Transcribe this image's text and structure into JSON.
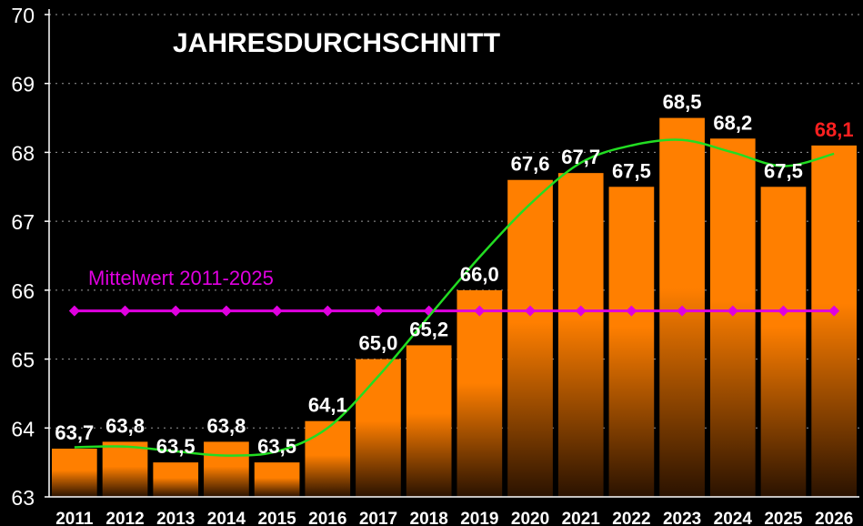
{
  "chart_data": {
    "type": "bar",
    "title": "JAHRESDURCHSCHNITT",
    "categories": [
      "2011",
      "2012",
      "2013",
      "2014",
      "2015",
      "2016",
      "2017",
      "2018",
      "2019",
      "2020",
      "2021",
      "2022",
      "2023",
      "2024",
      "2025",
      "2026"
    ],
    "values": [
      63.7,
      63.8,
      63.5,
      63.8,
      63.5,
      64.1,
      65.0,
      65.2,
      66.0,
      67.6,
      67.7,
      67.5,
      68.5,
      68.2,
      67.5,
      68.1
    ],
    "value_labels": [
      "63,7",
      "63,8",
      "63,5",
      "63,8",
      "63,5",
      "64,1",
      "65,0",
      "65,2",
      "66,0",
      "67,6",
      "67,7",
      "67,5",
      "68,5",
      "68,2",
      "67,5",
      "68,1"
    ],
    "highlight_index": 15,
    "ylim": [
      63,
      70
    ],
    "yticks": [
      "63",
      "64",
      "65",
      "66",
      "67",
      "68",
      "69",
      "70"
    ],
    "mean_line": {
      "label": "Mittelwert 2011-2025",
      "value": 65.7
    },
    "trend_line": {
      "name": "trend",
      "values": [
        63.72,
        63.73,
        63.66,
        63.6,
        63.66,
        64.0,
        64.75,
        65.62,
        66.48,
        67.25,
        67.85,
        68.1,
        68.18,
        68.0,
        67.8,
        67.98
      ]
    },
    "colors": {
      "bar_top": "#ff7f00",
      "bar_bottom": "#2a1200",
      "mean": "#e000e0",
      "trend": "#22dd22",
      "highlight_label": "#ff2020",
      "label": "#ffffff"
    }
  }
}
